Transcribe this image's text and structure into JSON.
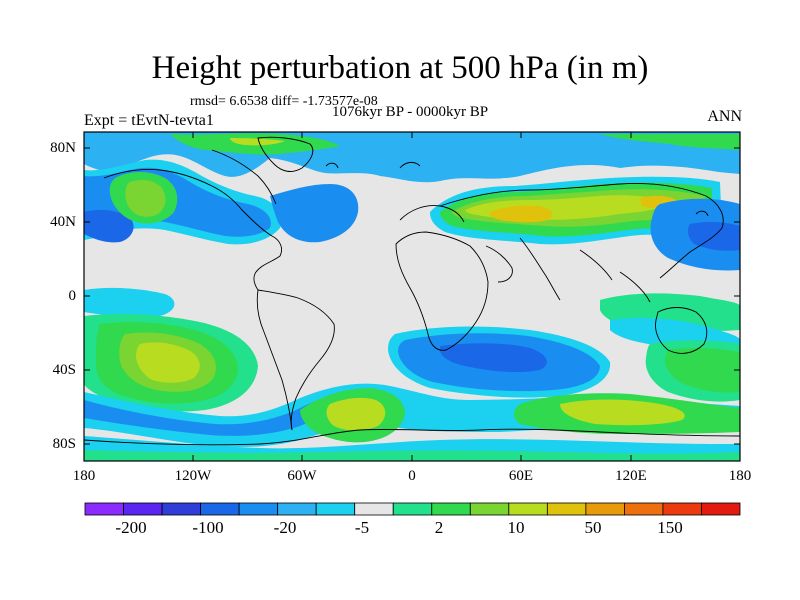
{
  "header": {
    "title": "Height perturbation at 500 hPa (in m)",
    "stats": "rmsd= 6.6538 diff= -1.73577e-08",
    "period": "1076kyr BP - 0000kyr BP",
    "experiment": "Expt = tEvtN-tevta1",
    "season": "ANN"
  },
  "axes": {
    "lat_labels": [
      "80N",
      "40N",
      "0",
      "40S",
      "80S"
    ],
    "lon_labels": [
      "180",
      "120W",
      "60W",
      "0",
      "60E",
      "120E",
      "180"
    ]
  },
  "colorbar": {
    "colors": [
      "#8c2bff",
      "#5a27f2",
      "#2f3ed8",
      "#1a68e8",
      "#1a8ef0",
      "#2cb1f2",
      "#1cd0ef",
      "#e6e6e6",
      "#22e08c",
      "#31d94e",
      "#7ad431",
      "#b8dc1f",
      "#e0c20d",
      "#e89b0a",
      "#ed6f0d",
      "#ec3a0f",
      "#e21a10"
    ],
    "labels": [
      "-200",
      "-100",
      "-20",
      "-5",
      "2",
      "10",
      "50",
      "150"
    ]
  },
  "legend_colors": {
    "land_outline": "#000000",
    "background": "#e6e6e6"
  }
}
